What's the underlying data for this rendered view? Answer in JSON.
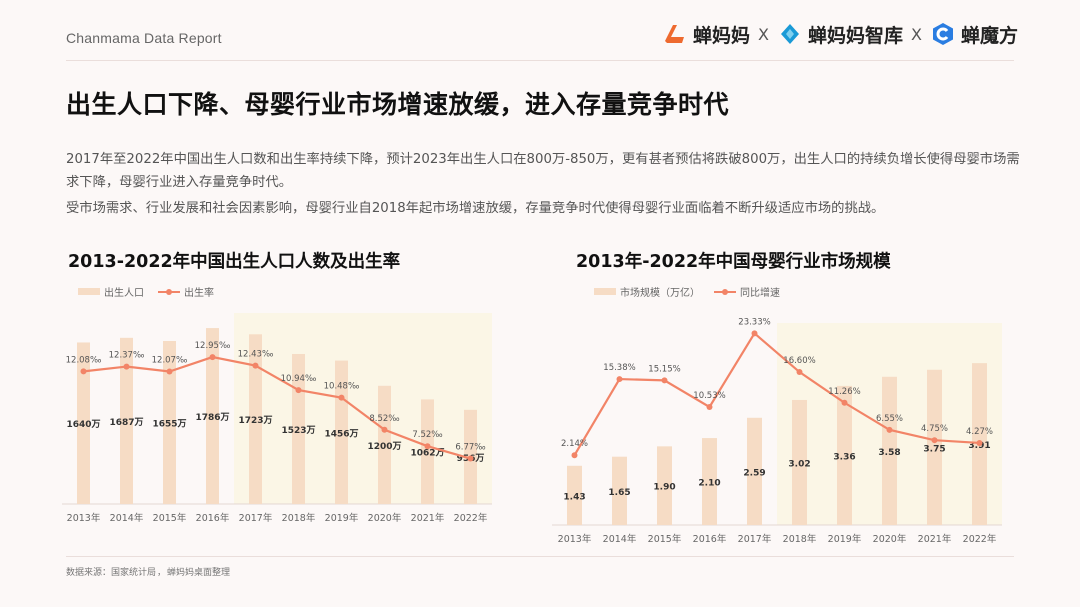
{
  "header": {
    "brand": "Chanmama Data Report",
    "logos": [
      {
        "name": "蝉妈妈",
        "color": "#ee6a2f",
        "icon": "chanmama-logo-icon"
      },
      {
        "name": "蝉妈妈智库",
        "color": "#1a9ad6",
        "icon": "chanmama-zhiku-logo-icon"
      },
      {
        "name": "蝉魔方",
        "color": "#2a7de1",
        "icon": "chanmofang-logo-icon"
      }
    ],
    "separator": "X"
  },
  "title": "出生人口下降、母婴行业市场增速放缓，进入存量竞争时代",
  "paragraphs": [
    "2017年至2022年中国出生人口数和出生率持续下降，预计2023年出生人口在800万-850万，更有甚者预估将跌破800万，出生人口的持续负增长使得母婴市场需求下降，母婴行业进入存量竞争时代。",
    "受市场需求、行业发展和社会因素影响，母婴行业自2018年起市场增速放缓，存量竞争时代使得母婴行业面临着不断升级适应市场的挑战。"
  ],
  "chart_data": [
    {
      "type": "bar",
      "title": "2013-2022年中国出生人口人数及出生率",
      "categories": [
        "2013年",
        "2014年",
        "2015年",
        "2016年",
        "2017年",
        "2018年",
        "2019年",
        "2020年",
        "2021年",
        "2022年"
      ],
      "series": [
        {
          "name": "出生人口",
          "kind": "bar",
          "values": [
            1640,
            1687,
            1655,
            1786,
            1723,
            1523,
            1456,
            1200,
            1062,
            956
          ],
          "labels": [
            "1640万",
            "1687万",
            "1655万",
            "1786万",
            "1723万",
            "1523万",
            "1456万",
            "1200万",
            "1062万",
            "956万"
          ]
        },
        {
          "name": "出生率",
          "kind": "line",
          "values": [
            12.08,
            12.37,
            12.07,
            12.95,
            12.43,
            10.94,
            10.48,
            8.52,
            7.52,
            6.77
          ],
          "labels": [
            "12.08‰",
            "12.37‰",
            "12.07‰",
            "12.95‰",
            "12.43‰",
            "10.94‰",
            "10.48‰",
            "8.52‰",
            "7.52‰",
            "6.77‰"
          ]
        }
      ],
      "bar_ylim": [
        0,
        2000
      ],
      "line_ylim": [
        4,
        16
      ],
      "highlight_from_index": 4,
      "legend": "top-left",
      "grid": false,
      "colors": {
        "bar": "#f6dcc5",
        "line": "#f28467",
        "highlight": "#fbf6e6"
      }
    },
    {
      "type": "bar",
      "title": "2013年-2022年中国母婴行业市场规模",
      "categories": [
        "2013年",
        "2014年",
        "2015年",
        "2016年",
        "2017年",
        "2018年",
        "2019年",
        "2020年",
        "2021年",
        "2022年"
      ],
      "series": [
        {
          "name": "市场规模（万亿）",
          "kind": "bar",
          "values": [
            1.43,
            1.65,
            1.9,
            2.1,
            2.59,
            3.02,
            3.36,
            3.58,
            3.75,
            3.91
          ],
          "labels": [
            "1.43",
            "1.65",
            "1.90",
            "2.10",
            "2.59",
            "3.02",
            "3.36",
            "3.58",
            "3.75",
            "3.91"
          ]
        },
        {
          "name": "同比增速",
          "kind": "line",
          "values": [
            2.14,
            15.38,
            15.15,
            10.53,
            23.33,
            16.6,
            11.26,
            6.55,
            4.75,
            4.27
          ],
          "labels": [
            "2.14%",
            "15.38%",
            "15.15%",
            "10.53%",
            "23.33%",
            "16.60%",
            "11.26%",
            "6.55%",
            "4.75%",
            "4.27%"
          ]
        }
      ],
      "bar_ylim": [
        0,
        5
      ],
      "line_ylim": [
        -10,
        26
      ],
      "highlight_from_index": 5,
      "legend": "top-left",
      "grid": false,
      "colors": {
        "bar": "#f6dcc5",
        "line": "#f28467",
        "highlight": "#fbf6e6"
      }
    }
  ],
  "source": {
    "label": "数据来源：",
    "items": [
      "国家统计局",
      "蝉妈妈桌面整理"
    ],
    "separator": "，"
  }
}
